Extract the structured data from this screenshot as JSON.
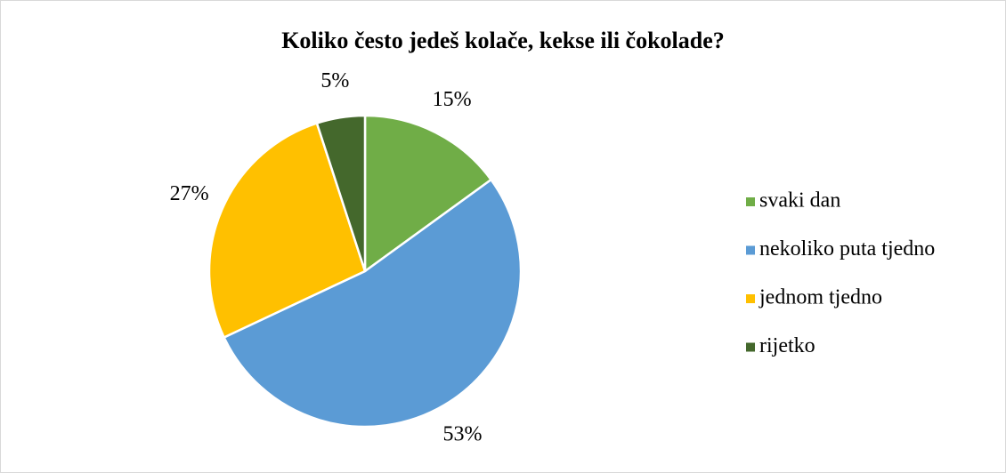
{
  "chart_data": {
    "type": "pie",
    "title": "Koliko često jedeš kolače, kekse ili čokolade?",
    "categories": [
      "svaki dan",
      "nekoliko puta tjedno",
      "jednom tjedno",
      "rijetko"
    ],
    "values": [
      15,
      53,
      27,
      5
    ],
    "value_labels": [
      "15%",
      "53%",
      "27%",
      "5%"
    ],
    "colors": [
      "#70ad47",
      "#5b9bd5",
      "#ffc000",
      "#44682c"
    ],
    "legend": "right"
  }
}
